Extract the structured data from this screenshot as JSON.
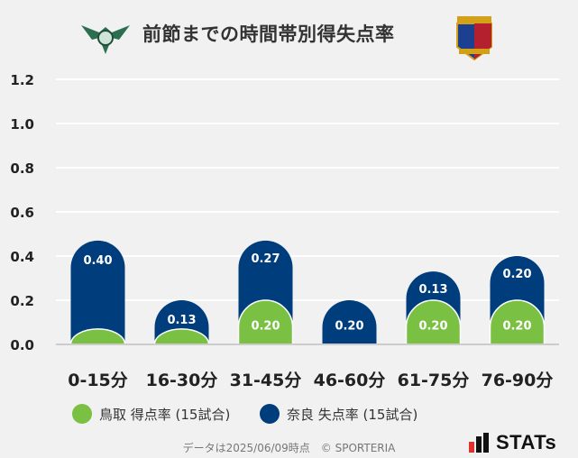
{
  "title": "前節までの時間帯別得失点率",
  "logos": {
    "left": {
      "icon": "tottori-emblem-icon",
      "color": "#2c6e4f"
    },
    "right": {
      "icon": "nara-emblem-icon",
      "color": "#1c3f8f"
    }
  },
  "chart_data": {
    "type": "bar",
    "categories": [
      "0-15分",
      "16-30分",
      "31-45分",
      "46-60分",
      "61-75分",
      "76-90分"
    ],
    "series": [
      {
        "name": "鳥取 得点率 (15試合)",
        "color": "#7ac143",
        "values": [
          0.07,
          0.07,
          0.2,
          0.0,
          0.2,
          0.2
        ]
      },
      {
        "name": "奈良 失点率 (15試合)",
        "color": "#003d7c",
        "values": [
          0.4,
          0.13,
          0.27,
          0.2,
          0.13,
          0.2
        ]
      }
    ],
    "data_labels": {
      "tottori": [
        "",
        "",
        "0.20",
        "",
        "0.20",
        "0.20"
      ],
      "nara": [
        "0.40",
        "0.13",
        "0.27",
        "0.20",
        "0.13",
        "0.20"
      ]
    },
    "stacked": true,
    "yticks": [
      "0.0",
      "0.2",
      "0.4",
      "0.6",
      "0.8",
      "1.0",
      "1.2"
    ],
    "ylim": [
      0,
      1.2
    ],
    "grid": true,
    "legend_position": "bottom"
  },
  "legend": {
    "tottori": "鳥取 得点率 (15試合)",
    "nara": "奈良 失点率 (15試合)"
  },
  "footer": "データは2025/06/09時点　© SPORTERIA",
  "brand": "STATs"
}
